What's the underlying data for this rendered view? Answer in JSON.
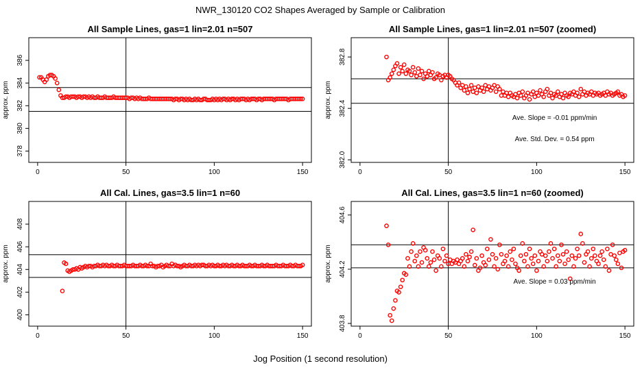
{
  "figure": {
    "title": "NWR_130120  CO2 Shapes Averaged by Sample or Calibration",
    "xlabel": "Jog Position (1 second resolution)"
  },
  "colors": {
    "points": "#ff0000",
    "lines": "#000000"
  },
  "chart_data": [
    {
      "type": "scatter",
      "title": "All Sample Lines, gas=1 lin=2.01 n=507",
      "ylabel": "approx. ppm",
      "xlim": [
        -5,
        155
      ],
      "ylim": [
        377,
        388
      ],
      "xticks": [
        0,
        50,
        100,
        150
      ],
      "yticks": [
        378,
        380,
        382,
        384,
        386
      ],
      "vline": 50,
      "hlines": [
        383.6,
        381.5
      ],
      "annotations": [],
      "x": [
        1,
        2,
        3,
        4,
        5,
        6,
        7,
        8,
        9,
        10,
        11,
        12,
        13,
        14,
        15,
        16,
        17,
        18,
        19,
        20,
        21,
        22,
        23,
        24,
        25,
        26,
        27,
        28,
        29,
        30,
        31,
        32,
        33,
        34,
        35,
        36,
        37,
        38,
        39,
        40,
        41,
        42,
        43,
        44,
        45,
        46,
        47,
        48,
        49,
        50,
        51,
        52,
        53,
        54,
        55,
        56,
        57,
        58,
        59,
        60,
        61,
        62,
        63,
        64,
        65,
        66,
        67,
        68,
        69,
        70,
        71,
        72,
        73,
        74,
        75,
        76,
        77,
        78,
        79,
        80,
        81,
        82,
        83,
        84,
        85,
        86,
        87,
        88,
        89,
        90,
        91,
        92,
        93,
        94,
        95,
        96,
        97,
        98,
        99,
        100,
        101,
        102,
        103,
        104,
        105,
        106,
        107,
        108,
        109,
        110,
        111,
        112,
        113,
        114,
        115,
        116,
        117,
        118,
        119,
        120,
        121,
        122,
        123,
        124,
        125,
        126,
        127,
        128,
        129,
        130,
        131,
        132,
        133,
        134,
        135,
        136,
        137,
        138,
        139,
        140,
        141,
        142,
        143,
        144,
        145,
        146,
        147,
        148,
        149,
        150
      ],
      "y": [
        384.5,
        384.5,
        384.3,
        384.1,
        384.3,
        384.6,
        384.7,
        384.7,
        384.6,
        384.4,
        384.0,
        383.4,
        382.9,
        382.7,
        382.7,
        382.8,
        382.8,
        382.7,
        382.8,
        382.8,
        382.8,
        382.7,
        382.8,
        382.8,
        382.7,
        382.8,
        382.8,
        382.7,
        382.8,
        382.7,
        382.8,
        382.7,
        382.7,
        382.8,
        382.7,
        382.7,
        382.7,
        382.8,
        382.7,
        382.7,
        382.7,
        382.7,
        382.8,
        382.7,
        382.7,
        382.7,
        382.7,
        382.7,
        382.7,
        382.7,
        382.7,
        382.6,
        382.7,
        382.7,
        382.6,
        382.7,
        382.6,
        382.7,
        382.6,
        382.6,
        382.6,
        382.6,
        382.7,
        382.6,
        382.6,
        382.6,
        382.6,
        382.6,
        382.6,
        382.6,
        382.6,
        382.6,
        382.6,
        382.6,
        382.6,
        382.6,
        382.5,
        382.6,
        382.6,
        382.5,
        382.6,
        382.6,
        382.5,
        382.6,
        382.5,
        382.6,
        382.5,
        382.5,
        382.6,
        382.5,
        382.6,
        382.5,
        382.5,
        382.6,
        382.6,
        382.5,
        382.5,
        382.5,
        382.6,
        382.5,
        382.6,
        382.5,
        382.6,
        382.5,
        382.6,
        382.6,
        382.5,
        382.6,
        382.5,
        382.6,
        382.6,
        382.5,
        382.6,
        382.5,
        382.6,
        382.6,
        382.6,
        382.5,
        382.6,
        382.5,
        382.6,
        382.6,
        382.6,
        382.5,
        382.6,
        382.6,
        382.5,
        382.6,
        382.6,
        382.6,
        382.6,
        382.6,
        382.6,
        382.5,
        382.6,
        382.6,
        382.6,
        382.6,
        382.6,
        382.6,
        382.6,
        382.5,
        382.6,
        382.6,
        382.6,
        382.6,
        382.6,
        382.6,
        382.6,
        382.6
      ]
    },
    {
      "type": "scatter",
      "title": "All Sample Lines, gas=1 lin=2.01 n=507 (zoomed)",
      "ylabel": "approx. ppm",
      "xlim": [
        -5,
        155
      ],
      "ylim": [
        381.98,
        382.95
      ],
      "xticks": [
        0,
        50,
        100,
        150
      ],
      "yticks": [
        382.0,
        382.4,
        382.8
      ],
      "vline": 50,
      "hlines": [
        382.63,
        382.44
      ],
      "annotations": [
        "Ave. Slope =  -0.01  ppm/min",
        "Ave. Std. Dev. =  0.54  ppm"
      ],
      "x": [
        15,
        16,
        17,
        18,
        19,
        20,
        21,
        22,
        23,
        24,
        25,
        26,
        27,
        28,
        29,
        30,
        31,
        32,
        33,
        34,
        35,
        36,
        37,
        38,
        39,
        40,
        41,
        42,
        43,
        44,
        45,
        46,
        47,
        48,
        49,
        50,
        51,
        52,
        53,
        54,
        55,
        56,
        57,
        58,
        59,
        60,
        61,
        62,
        63,
        64,
        65,
        66,
        67,
        68,
        69,
        70,
        71,
        72,
        73,
        74,
        75,
        76,
        77,
        78,
        79,
        80,
        81,
        82,
        83,
        84,
        85,
        86,
        87,
        88,
        89,
        90,
        91,
        92,
        93,
        94,
        95,
        96,
        97,
        98,
        99,
        100,
        101,
        102,
        103,
        104,
        105,
        106,
        107,
        108,
        109,
        110,
        111,
        112,
        113,
        114,
        115,
        116,
        117,
        118,
        119,
        120,
        121,
        122,
        123,
        124,
        125,
        126,
        127,
        128,
        129,
        130,
        131,
        132,
        133,
        134,
        135,
        136,
        137,
        138,
        139,
        140,
        141,
        142,
        143,
        144,
        145,
        146,
        147,
        148,
        149,
        150
      ],
      "y": [
        382.8,
        382.62,
        382.64,
        382.67,
        382.7,
        382.73,
        382.75,
        382.67,
        382.72,
        382.69,
        382.74,
        382.67,
        382.7,
        382.69,
        382.66,
        382.72,
        382.68,
        382.65,
        382.71,
        382.66,
        382.69,
        382.63,
        382.67,
        382.65,
        382.69,
        382.66,
        382.68,
        382.63,
        382.64,
        382.67,
        382.66,
        382.62,
        382.65,
        382.66,
        382.64,
        382.66,
        382.65,
        382.63,
        382.62,
        382.6,
        382.58,
        382.6,
        382.56,
        382.58,
        382.54,
        382.57,
        382.52,
        382.55,
        382.58,
        382.53,
        382.56,
        382.52,
        382.57,
        382.54,
        382.56,
        382.53,
        382.58,
        382.55,
        382.57,
        382.54,
        382.56,
        382.58,
        382.53,
        382.57,
        382.55,
        382.5,
        382.53,
        382.5,
        382.52,
        382.49,
        382.52,
        382.5,
        382.49,
        382.51,
        382.48,
        382.52,
        382.5,
        382.53,
        382.48,
        382.5,
        382.52,
        382.47,
        382.51,
        382.53,
        382.49,
        382.52,
        382.5,
        382.54,
        382.51,
        382.49,
        382.53,
        382.55,
        382.5,
        382.52,
        382.48,
        382.51,
        382.5,
        382.53,
        382.49,
        382.51,
        382.48,
        382.52,
        382.5,
        382.49,
        382.52,
        382.51,
        382.53,
        382.5,
        382.52,
        382.49,
        382.55,
        382.51,
        382.53,
        382.5,
        382.52,
        382.51,
        382.53,
        382.5,
        382.52,
        382.51,
        382.52,
        382.5,
        382.51,
        382.52,
        382.5,
        382.53,
        382.51,
        382.52,
        382.5,
        382.51,
        382.52,
        382.53,
        382.5,
        382.51,
        382.49,
        382.5
      ]
    },
    {
      "type": "scatter",
      "title": "All Cal. Lines, gas=3.5 lin=1 n=60",
      "ylabel": "approx. ppm",
      "xlim": [
        -5,
        155
      ],
      "ylim": [
        399,
        410
      ],
      "xticks": [
        0,
        50,
        100,
        150
      ],
      "yticks": [
        400,
        402,
        404,
        406,
        408
      ],
      "vline": 50,
      "hlines": [
        405.3,
        403.3
      ],
      "annotations": [],
      "x": [
        14,
        15,
        16,
        17,
        18,
        19,
        20,
        21,
        22,
        23,
        24,
        25,
        26,
        27,
        28,
        29,
        30,
        31,
        32,
        33,
        34,
        35,
        36,
        37,
        38,
        39,
        40,
        41,
        42,
        43,
        44,
        45,
        46,
        47,
        48,
        49,
        50,
        51,
        52,
        53,
        54,
        55,
        56,
        57,
        58,
        59,
        60,
        61,
        62,
        63,
        64,
        65,
        66,
        67,
        68,
        69,
        70,
        71,
        72,
        73,
        74,
        75,
        76,
        77,
        78,
        79,
        80,
        81,
        82,
        83,
        84,
        85,
        86,
        87,
        88,
        89,
        90,
        91,
        92,
        93,
        94,
        95,
        96,
        97,
        98,
        99,
        100,
        101,
        102,
        103,
        104,
        105,
        106,
        107,
        108,
        109,
        110,
        111,
        112,
        113,
        114,
        115,
        116,
        117,
        118,
        119,
        120,
        121,
        122,
        123,
        124,
        125,
        126,
        127,
        128,
        129,
        130,
        131,
        132,
        133,
        134,
        135,
        136,
        137,
        138,
        139,
        140,
        141,
        142,
        143,
        144,
        145,
        146,
        147,
        148,
        149,
        150
      ],
      "y": [
        402.1,
        404.6,
        404.5,
        403.9,
        403.8,
        403.9,
        404.0,
        404.0,
        404.1,
        404.0,
        404.2,
        404.1,
        404.2,
        404.3,
        404.2,
        404.3,
        404.3,
        404.2,
        404.3,
        404.3,
        404.4,
        404.3,
        404.3,
        404.4,
        404.3,
        404.4,
        404.3,
        404.3,
        404.4,
        404.3,
        404.3,
        404.4,
        404.3,
        404.3,
        404.3,
        404.4,
        404.3,
        404.3,
        404.3,
        404.3,
        404.4,
        404.3,
        404.3,
        404.3,
        404.4,
        404.3,
        404.3,
        404.4,
        404.3,
        404.3,
        404.5,
        404.3,
        404.3,
        404.2,
        404.3,
        404.3,
        404.4,
        404.2,
        404.3,
        404.4,
        404.3,
        404.3,
        404.5,
        404.3,
        404.4,
        404.3,
        404.3,
        404.2,
        404.3,
        404.4,
        404.3,
        404.3,
        404.4,
        404.3,
        404.3,
        404.4,
        404.3,
        404.4,
        404.3,
        404.4,
        404.4,
        404.3,
        404.3,
        404.4,
        404.3,
        404.4,
        404.3,
        404.3,
        404.4,
        404.3,
        404.3,
        404.4,
        404.3,
        404.4,
        404.3,
        404.3,
        404.4,
        404.3,
        404.3,
        404.4,
        404.3,
        404.3,
        404.4,
        404.3,
        404.3,
        404.3,
        404.4,
        404.3,
        404.3,
        404.4,
        404.3,
        404.3,
        404.3,
        404.4,
        404.3,
        404.3,
        404.4,
        404.3,
        404.3,
        404.3,
        404.3,
        404.4,
        404.3,
        404.3,
        404.3,
        404.4,
        404.3,
        404.3,
        404.3,
        404.4,
        404.3,
        404.3,
        404.4,
        404.3,
        404.3,
        404.3,
        404.4
      ]
    },
    {
      "type": "scatter",
      "title": "All Cal. Lines, gas=3.5 lin=1 n=60 (zoomed)",
      "ylabel": "approx. ppm",
      "xlim": [
        -5,
        155
      ],
      "ylim": [
        403.78,
        404.7
      ],
      "xticks": [
        0,
        50,
        100,
        150
      ],
      "yticks": [
        403.8,
        404.2,
        404.6
      ],
      "vline": 50,
      "hlines": [
        404.38,
        404.21
      ],
      "annotations": [
        "Ave. Slope =  0.03  ppm/min"
      ],
      "x": [
        15,
        16,
        17,
        18,
        19,
        20,
        21,
        22,
        23,
        24,
        25,
        26,
        27,
        28,
        29,
        30,
        31,
        32,
        33,
        34,
        35,
        36,
        37,
        38,
        39,
        40,
        41,
        42,
        43,
        44,
        45,
        46,
        47,
        48,
        49,
        50,
        51,
        52,
        53,
        54,
        55,
        56,
        57,
        58,
        59,
        60,
        61,
        62,
        63,
        64,
        65,
        66,
        67,
        68,
        69,
        70,
        71,
        72,
        73,
        74,
        75,
        76,
        77,
        78,
        79,
        80,
        81,
        82,
        83,
        84,
        85,
        86,
        87,
        88,
        89,
        90,
        91,
        92,
        93,
        94,
        95,
        96,
        97,
        98,
        99,
        100,
        101,
        102,
        103,
        104,
        105,
        106,
        107,
        108,
        109,
        110,
        111,
        112,
        113,
        114,
        115,
        116,
        117,
        118,
        119,
        120,
        121,
        122,
        123,
        124,
        125,
        126,
        127,
        128,
        129,
        130,
        131,
        132,
        133,
        134,
        135,
        136,
        137,
        138,
        139,
        140,
        141,
        142,
        143,
        144,
        145,
        146,
        147,
        148,
        149,
        150
      ],
      "y": [
        404.52,
        404.38,
        403.86,
        403.82,
        403.91,
        403.97,
        404.04,
        404.03,
        404.07,
        404.12,
        404.17,
        404.16,
        404.28,
        404.22,
        404.33,
        404.39,
        404.26,
        404.3,
        404.22,
        404.33,
        404.25,
        404.36,
        404.34,
        404.28,
        404.22,
        404.25,
        404.33,
        404.27,
        404.19,
        404.3,
        404.28,
        404.22,
        404.35,
        404.26,
        404.3,
        404.24,
        404.27,
        404.24,
        404.26,
        404.25,
        404.27,
        404.24,
        404.26,
        404.28,
        404.22,
        404.31,
        404.26,
        404.29,
        404.33,
        404.49,
        404.23,
        404.28,
        404.19,
        404.21,
        404.3,
        404.25,
        404.23,
        404.35,
        404.27,
        404.42,
        404.31,
        404.22,
        404.28,
        404.2,
        404.38,
        404.31,
        404.24,
        404.26,
        404.3,
        404.22,
        404.33,
        404.27,
        404.35,
        404.24,
        404.21,
        404.19,
        404.3,
        404.39,
        404.26,
        404.31,
        404.22,
        404.35,
        404.28,
        404.24,
        404.3,
        404.19,
        404.26,
        404.33,
        404.31,
        404.22,
        404.3,
        404.26,
        404.33,
        404.39,
        404.28,
        404.35,
        404.22,
        404.3,
        404.26,
        404.38,
        404.31,
        404.24,
        404.33,
        404.27,
        404.13,
        404.3,
        404.22,
        404.28,
        404.35,
        404.3,
        404.46,
        404.39,
        404.25,
        404.31,
        404.33,
        404.22,
        404.28,
        404.35,
        404.3,
        404.26,
        404.24,
        404.3,
        404.33,
        404.27,
        404.22,
        404.35,
        404.19,
        404.31,
        404.38,
        404.3,
        404.27,
        404.24,
        404.32,
        404.21,
        404.33,
        404.34
      ]
    }
  ]
}
